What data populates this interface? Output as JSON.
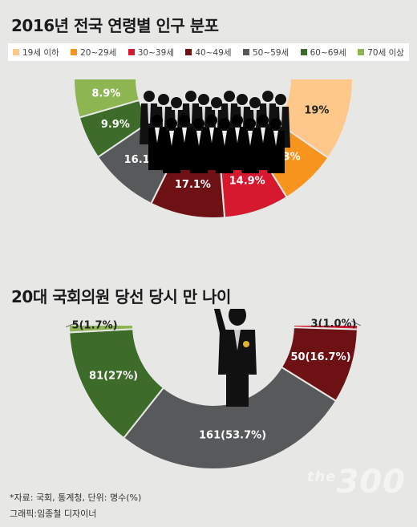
{
  "charts_meta": {
    "footer_source": "*자료: 국회, 통계청, 단위: 명수(%)",
    "footer_credit": "그래픽:임종철 디자이너",
    "logo_sup": "the",
    "logo_main": "300"
  },
  "chart_data": [
    {
      "type": "pie",
      "variant": "semi-donut",
      "title": "2016년 전국 연령별 인구 분포",
      "categories": [
        "19세 이하",
        "20~29세",
        "30~39세",
        "40~49세",
        "50~59세",
        "60~69세",
        "70세 이상"
      ],
      "values": [
        19,
        13,
        14.9,
        17.1,
        16.1,
        9.9,
        8.9
      ],
      "value_labels": [
        "19%",
        "13%",
        "14.9%",
        "17.1%",
        "16.1%",
        "9.9%",
        "8.9%"
      ],
      "colors": [
        "#fdc88a",
        "#f7941d",
        "#d7192f",
        "#6e1114",
        "#58595b",
        "#3d6b2a",
        "#8db552"
      ],
      "label_colors": [
        "#222222",
        "#ffffff",
        "#ffffff",
        "#ffffff",
        "#ffffff",
        "#ffffff",
        "#ffffff"
      ],
      "legend_position": "top"
    },
    {
      "type": "pie",
      "variant": "semi-donut",
      "title": "20대 국회의원 당선 당시 만 나이",
      "categories": [
        "30~39세",
        "40~49세",
        "50~59세",
        "60~69세",
        "70세 이상"
      ],
      "values": [
        3,
        50,
        161,
        81,
        5
      ],
      "percents": [
        1.0,
        16.7,
        53.7,
        27,
        1.7
      ],
      "value_labels": [
        "3(1.0%)",
        "50(16.7%)",
        "161(53.7%)",
        "81(27%)",
        "5(1.7%)"
      ],
      "colors": [
        "#d7192f",
        "#6e1114",
        "#58595b",
        "#3d6b2a",
        "#8db552"
      ],
      "label_colors": [
        "#222222",
        "#ffffff",
        "#ffffff",
        "#ffffff",
        "#222222"
      ],
      "outside_labels": [
        true,
        false,
        false,
        false,
        true
      ]
    }
  ]
}
